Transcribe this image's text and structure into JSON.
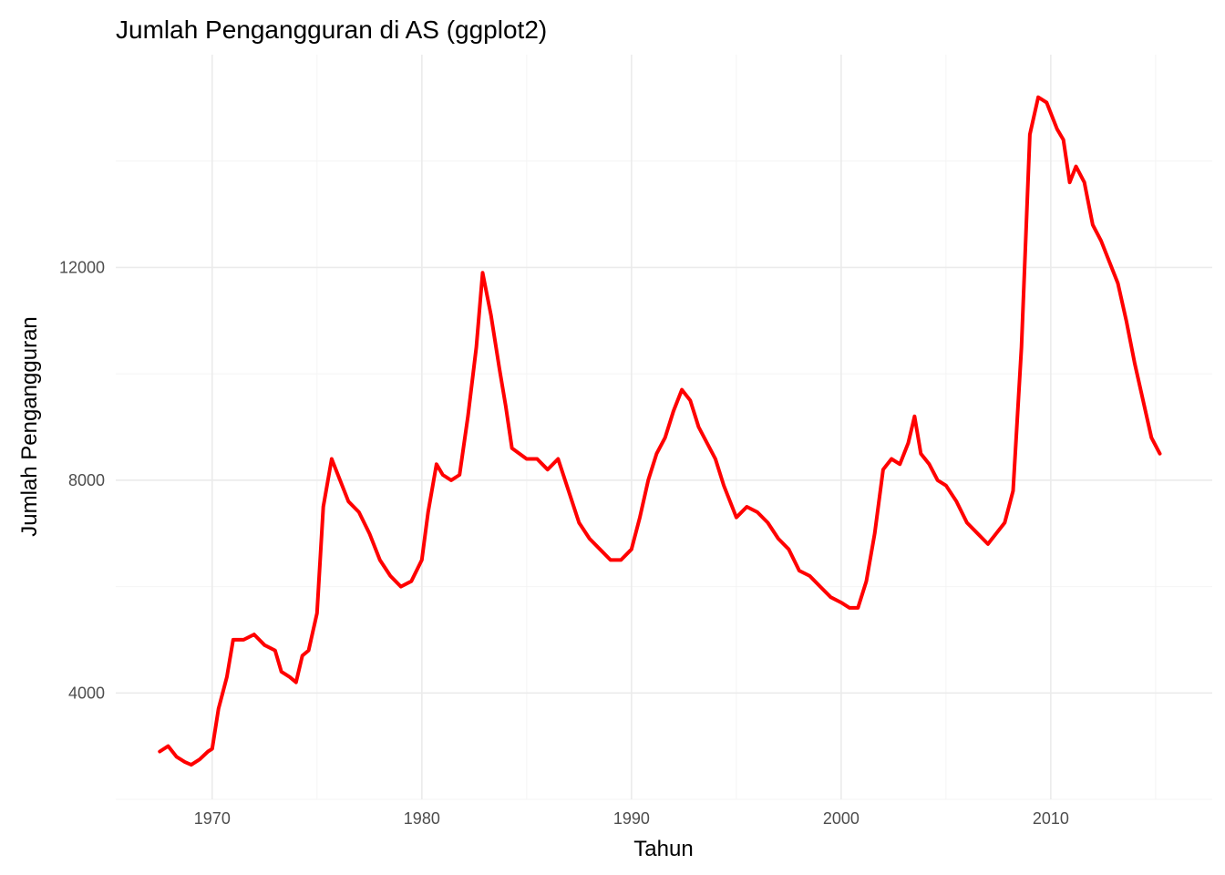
{
  "chart_data": {
    "type": "line",
    "title": "Jumlah Pengangguran di AS (ggplot2)",
    "xlabel": "Tahun",
    "ylabel": "Jumlah Pengangguran",
    "xlim": [
      1965.4,
      2017.7
    ],
    "ylim": [
      2000,
      16000
    ],
    "x_ticks": [
      1970,
      1980,
      1990,
      2000,
      2010
    ],
    "x_tick_labels": [
      "1970",
      "1980",
      "1990",
      "2000",
      "2010"
    ],
    "y_ticks": [
      4000,
      8000,
      12000
    ],
    "y_tick_labels": [
      "4000",
      "8000",
      "12000"
    ],
    "grid": true,
    "legend": "none",
    "series_color": "#ff0000",
    "series": [
      {
        "x": [
          1967.5,
          1967.9,
          1968.3,
          1968.7,
          1969.0,
          1969.4,
          1969.8,
          1970.0,
          1970.3,
          1970.7,
          1971.0,
          1971.5,
          1972.0,
          1972.5,
          1973.0,
          1973.3,
          1973.7,
          1974.0,
          1974.3,
          1974.6,
          1975.0,
          1975.3,
          1975.7,
          1976.1,
          1976.5,
          1977.0,
          1977.5,
          1978.0,
          1978.5,
          1979.0,
          1979.5,
          1980.0,
          1980.3,
          1980.7,
          1981.0,
          1981.4,
          1981.8,
          1982.2,
          1982.6,
          1982.9,
          1983.3,
          1983.7,
          1984.0,
          1984.3,
          1985.0,
          1985.5,
          1986.0,
          1986.5,
          1987.0,
          1987.5,
          1988.0,
          1988.5,
          1989.0,
          1989.5,
          1990.0,
          1990.4,
          1990.8,
          1991.2,
          1991.6,
          1992.0,
          1992.4,
          1992.8,
          1993.2,
          1993.6,
          1994.0,
          1994.4,
          1995.0,
          1995.5,
          1996.0,
          1996.5,
          1997.0,
          1997.5,
          1998.0,
          1998.5,
          1999.0,
          1999.5,
          2000.0,
          2000.4,
          2000.8,
          2001.2,
          2001.6,
          2002.0,
          2002.4,
          2002.8,
          2003.2,
          2003.5,
          2003.8,
          2004.2,
          2004.6,
          2005.0,
          2005.5,
          2006.0,
          2006.5,
          2007.0,
          2007.4,
          2007.8,
          2008.2,
          2008.6,
          2009.0,
          2009.4,
          2009.8,
          2010.0,
          2010.3,
          2010.6,
          2010.9,
          2011.2,
          2011.6,
          2012.0,
          2012.4,
          2012.8,
          2013.2,
          2013.6,
          2014.0,
          2014.4,
          2014.8,
          2015.2
        ],
        "values": [
          2900,
          3000,
          2800,
          2700,
          2650,
          2750,
          2900,
          2950,
          3700,
          4300,
          5000,
          5000,
          5100,
          4900,
          4800,
          4400,
          4300,
          4200,
          4700,
          4800,
          5500,
          7500,
          8400,
          8000,
          7600,
          7400,
          7000,
          6500,
          6200,
          6000,
          6100,
          6500,
          7400,
          8300,
          8100,
          8000,
          8100,
          9200,
          10500,
          11900,
          11100,
          10100,
          9400,
          8600,
          8400,
          8400,
          8200,
          8400,
          7800,
          7200,
          6900,
          6700,
          6500,
          6500,
          6700,
          7300,
          8000,
          8500,
          8800,
          9300,
          9700,
          9500,
          9000,
          8700,
          8400,
          7900,
          7300,
          7500,
          7400,
          7200,
          6900,
          6700,
          6300,
          6200,
          6000,
          5800,
          5700,
          5600,
          5600,
          6100,
          7000,
          8200,
          8400,
          8300,
          8700,
          9200,
          8500,
          8300,
          8000,
          7900,
          7600,
          7200,
          7000,
          6800,
          7000,
          7200,
          7800,
          10500,
          14500,
          15200,
          15100,
          14900,
          14600,
          14400,
          13600,
          13900,
          13600,
          12800,
          12500,
          12100,
          11700,
          11000,
          10200,
          9500,
          8800,
          8500
        ]
      }
    ]
  }
}
